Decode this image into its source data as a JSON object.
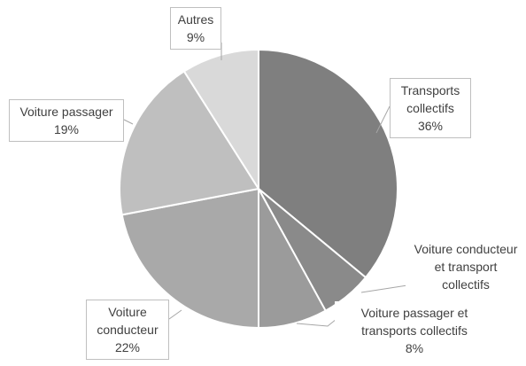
{
  "chart_data": {
    "type": "pie",
    "categories": [
      "Transports collectifs",
      "Voiture conducteur et transport collectifs",
      "Voiture passager et transports collectifs",
      "Voiture conducteur",
      "Voiture passager",
      "Autres"
    ],
    "values": [
      36,
      6,
      8,
      22,
      19,
      9
    ],
    "value_labels": [
      "36%",
      null,
      "8%",
      "22%",
      "19%",
      "9%"
    ],
    "colors": [
      "#7f7f7f",
      "#8a8a8a",
      "#9b9b9b",
      "#a9a9a9",
      "#bfbfbf",
      "#d9d9d9"
    ]
  }
}
